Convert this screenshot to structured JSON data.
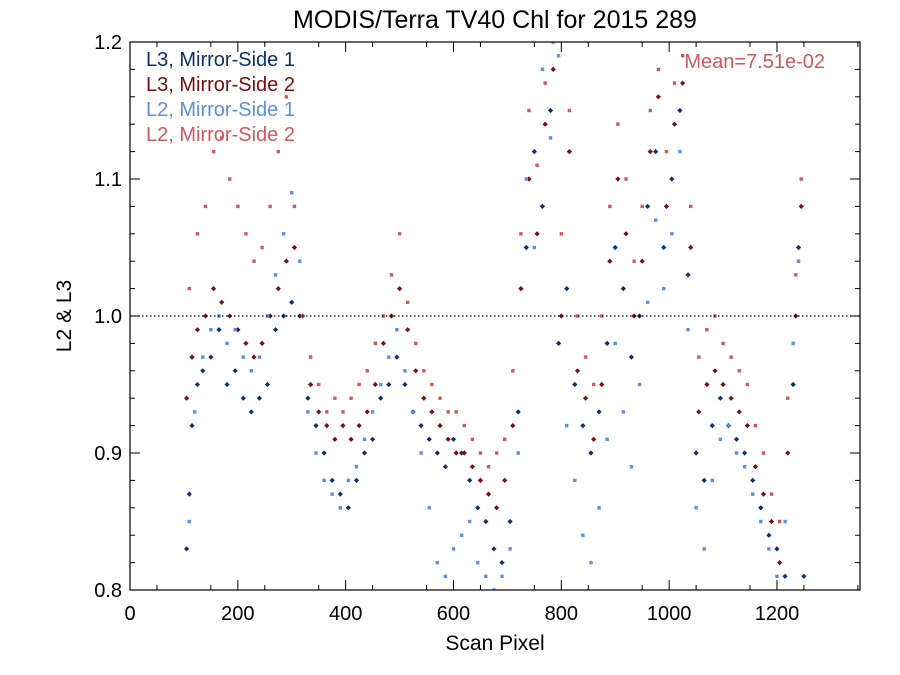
{
  "chart_data": {
    "type": "scatter",
    "title": "MODIS/Terra TV40 Chl for 2015 289",
    "xlabel": "Scan Pixel",
    "ylabel": "L2 & L3",
    "xlim": [
      0,
      1354
    ],
    "ylim": [
      0.8,
      1.2
    ],
    "x_ticks": [
      0,
      200,
      400,
      600,
      800,
      1000,
      1200
    ],
    "x_tick_labels": [
      "0",
      "200",
      "400",
      "600",
      "800",
      "1000",
      "1200"
    ],
    "y_ticks": [
      0.8,
      0.9,
      1.0,
      1.1,
      1.2
    ],
    "y_tick_labels": [
      "0.8",
      "0.9",
      "1.0",
      "1.1",
      "1.2"
    ],
    "reference_line": 1.0,
    "grid": false,
    "legend_position": "top-left",
    "annotation": {
      "text": "Mean=7.51e-02",
      "color": "#d0585c"
    },
    "series": [
      {
        "name": "L3, Mirror-Side 1",
        "color": "#0d2f6b",
        "marker": "diamond",
        "points": [
          [
            105,
            0.83
          ],
          [
            110,
            0.87
          ],
          [
            115,
            0.92
          ],
          [
            125,
            0.95
          ],
          [
            135,
            0.96
          ],
          [
            150,
            0.97
          ],
          [
            165,
            0.99
          ],
          [
            180,
            0.95
          ],
          [
            195,
            0.96
          ],
          [
            210,
            0.94
          ],
          [
            225,
            0.93
          ],
          [
            240,
            0.94
          ],
          [
            255,
            0.95
          ],
          [
            270,
            0.99
          ],
          [
            285,
            1.0
          ],
          [
            300,
            1.01
          ],
          [
            315,
            1.0
          ],
          [
            330,
            0.94
          ],
          [
            345,
            0.92
          ],
          [
            360,
            0.9
          ],
          [
            375,
            0.88
          ],
          [
            390,
            0.87
          ],
          [
            405,
            0.86
          ],
          [
            420,
            0.88
          ],
          [
            435,
            0.9
          ],
          [
            450,
            0.91
          ],
          [
            465,
            0.94
          ],
          [
            480,
            0.95
          ],
          [
            495,
            0.97
          ],
          [
            510,
            0.95
          ],
          [
            525,
            0.93
          ],
          [
            540,
            0.92
          ],
          [
            555,
            0.91
          ],
          [
            570,
            0.9
          ],
          [
            585,
            0.89
          ],
          [
            600,
            0.91
          ],
          [
            615,
            0.9
          ],
          [
            630,
            0.88
          ],
          [
            645,
            0.86
          ],
          [
            660,
            0.85
          ],
          [
            675,
            0.83
          ],
          [
            690,
            0.82
          ],
          [
            705,
            0.85
          ],
          [
            720,
            0.93
          ],
          [
            735,
            1.05
          ],
          [
            750,
            1.12
          ],
          [
            765,
            1.08
          ],
          [
            780,
            1.15
          ],
          [
            795,
            0.98
          ],
          [
            810,
            1.02
          ],
          [
            825,
            0.95
          ],
          [
            840,
            0.92
          ],
          [
            855,
            0.9
          ],
          [
            870,
            0.93
          ],
          [
            885,
            0.98
          ],
          [
            900,
            1.05
          ],
          [
            915,
            1.02
          ],
          [
            930,
            0.97
          ],
          [
            945,
            1.0
          ],
          [
            960,
            1.08
          ],
          [
            975,
            1.12
          ],
          [
            990,
            1.05
          ],
          [
            1005,
            1.1
          ],
          [
            1020,
            1.15
          ],
          [
            1035,
            1.03
          ],
          [
            1050,
            0.9
          ],
          [
            1065,
            0.88
          ],
          [
            1080,
            0.92
          ],
          [
            1095,
            0.94
          ],
          [
            1110,
            0.92
          ],
          [
            1125,
            0.91
          ],
          [
            1140,
            0.9
          ],
          [
            1155,
            0.88
          ],
          [
            1170,
            0.86
          ],
          [
            1185,
            0.84
          ],
          [
            1200,
            0.83
          ],
          [
            1215,
            0.81
          ],
          [
            1230,
            0.95
          ],
          [
            1240,
            1.05
          ],
          [
            1250,
            0.81
          ]
        ]
      },
      {
        "name": "L3, Mirror-Side 2",
        "color": "#7a0c14",
        "marker": "diamond",
        "points": [
          [
            105,
            0.94
          ],
          [
            115,
            0.97
          ],
          [
            125,
            0.99
          ],
          [
            140,
            1.0
          ],
          [
            155,
            1.02
          ],
          [
            170,
            1.01
          ],
          [
            185,
            1.0
          ],
          [
            200,
            0.99
          ],
          [
            215,
            0.98
          ],
          [
            230,
            0.97
          ],
          [
            245,
            0.98
          ],
          [
            260,
            1.0
          ],
          [
            275,
            1.02
          ],
          [
            290,
            1.04
          ],
          [
            305,
            1.05
          ],
          [
            320,
            1.0
          ],
          [
            335,
            0.95
          ],
          [
            350,
            0.93
          ],
          [
            365,
            0.92
          ],
          [
            380,
            0.91
          ],
          [
            395,
            0.92
          ],
          [
            410,
            0.91
          ],
          [
            425,
            0.92
          ],
          [
            440,
            0.93
          ],
          [
            455,
            0.95
          ],
          [
            470,
            0.98
          ],
          [
            485,
            1.0
          ],
          [
            500,
            1.02
          ],
          [
            515,
            0.99
          ],
          [
            530,
            0.96
          ],
          [
            545,
            0.94
          ],
          [
            560,
            0.93
          ],
          [
            575,
            0.92
          ],
          [
            590,
            0.91
          ],
          [
            605,
            0.9
          ],
          [
            620,
            0.9
          ],
          [
            635,
            0.89
          ],
          [
            650,
            0.88
          ],
          [
            665,
            0.87
          ],
          [
            680,
            0.86
          ],
          [
            695,
            0.88
          ],
          [
            710,
            0.92
          ],
          [
            725,
            1.02
          ],
          [
            740,
            1.1
          ],
          [
            755,
            1.06
          ],
          [
            770,
            1.14
          ],
          [
            785,
            1.18
          ],
          [
            800,
            1.0
          ],
          [
            815,
            1.12
          ],
          [
            830,
            0.96
          ],
          [
            845,
            0.94
          ],
          [
            860,
            0.91
          ],
          [
            875,
            0.95
          ],
          [
            890,
            1.04
          ],
          [
            905,
            1.1
          ],
          [
            920,
            1.06
          ],
          [
            935,
            1.0
          ],
          [
            950,
            1.04
          ],
          [
            965,
            1.12
          ],
          [
            980,
            1.16
          ],
          [
            995,
            1.08
          ],
          [
            1010,
            1.14
          ],
          [
            1025,
            1.17
          ],
          [
            1040,
            1.05
          ],
          [
            1055,
            0.93
          ],
          [
            1070,
            0.95
          ],
          [
            1085,
            0.96
          ],
          [
            1100,
            0.95
          ],
          [
            1115,
            0.94
          ],
          [
            1130,
            0.93
          ],
          [
            1145,
            0.92
          ],
          [
            1160,
            0.89
          ],
          [
            1175,
            0.87
          ],
          [
            1190,
            0.85
          ],
          [
            1205,
            0.82
          ],
          [
            1220,
            0.9
          ],
          [
            1235,
            1.0
          ],
          [
            1245,
            1.08
          ]
        ]
      },
      {
        "name": "L2, Mirror-Side 1",
        "color": "#5b8fe0",
        "marker": "square",
        "points": [
          [
            110,
            0.85
          ],
          [
            120,
            0.93
          ],
          [
            135,
            0.97
          ],
          [
            150,
            0.99
          ],
          [
            165,
            1.0
          ],
          [
            180,
            0.98
          ],
          [
            195,
            0.99
          ],
          [
            210,
            0.97
          ],
          [
            225,
            0.96
          ],
          [
            240,
            0.97
          ],
          [
            255,
            1.0
          ],
          [
            270,
            1.03
          ],
          [
            285,
            1.06
          ],
          [
            300,
            1.09
          ],
          [
            315,
            1.04
          ],
          [
            330,
            0.93
          ],
          [
            345,
            0.9
          ],
          [
            360,
            0.88
          ],
          [
            375,
            0.87
          ],
          [
            390,
            0.86
          ],
          [
            405,
            0.88
          ],
          [
            420,
            0.89
          ],
          [
            435,
            0.91
          ],
          [
            450,
            0.93
          ],
          [
            465,
            0.95
          ],
          [
            480,
            0.97
          ],
          [
            495,
            0.99
          ],
          [
            510,
            0.96
          ],
          [
            525,
            0.93
          ],
          [
            540,
            0.9
          ],
          [
            555,
            0.86
          ],
          [
            570,
            0.82
          ],
          [
            585,
            0.81
          ],
          [
            600,
            0.83
          ],
          [
            615,
            0.84
          ],
          [
            630,
            0.85
          ],
          [
            645,
            0.82
          ],
          [
            660,
            0.81
          ],
          [
            675,
            0.8
          ],
          [
            690,
            0.81
          ],
          [
            705,
            0.83
          ],
          [
            720,
            0.9
          ],
          [
            735,
            1.1
          ],
          [
            750,
            1.05
          ],
          [
            765,
            1.18
          ],
          [
            780,
            1.13
          ],
          [
            795,
            1.19
          ],
          [
            810,
            0.92
          ],
          [
            825,
            0.88
          ],
          [
            840,
            0.84
          ],
          [
            855,
            0.82
          ],
          [
            870,
            0.86
          ],
          [
            885,
            0.91
          ],
          [
            900,
            0.98
          ],
          [
            915,
            0.93
          ],
          [
            930,
            0.89
          ],
          [
            945,
            0.95
          ],
          [
            960,
            1.01
          ],
          [
            975,
            1.07
          ],
          [
            990,
            1.02
          ],
          [
            1005,
            1.06
          ],
          [
            1020,
            1.12
          ],
          [
            1035,
            0.99
          ],
          [
            1050,
            0.86
          ],
          [
            1065,
            0.83
          ],
          [
            1080,
            0.88
          ],
          [
            1095,
            0.91
          ],
          [
            1110,
            0.92
          ],
          [
            1125,
            0.9
          ],
          [
            1140,
            0.89
          ],
          [
            1155,
            0.87
          ],
          [
            1170,
            0.85
          ],
          [
            1185,
            0.83
          ],
          [
            1200,
            0.81
          ],
          [
            1215,
            0.85
          ],
          [
            1230,
            0.98
          ],
          [
            1240,
            1.04
          ]
        ]
      },
      {
        "name": "L2, Mirror-Side 2",
        "color": "#d0585c",
        "marker": "square",
        "points": [
          [
            110,
            1.02
          ],
          [
            125,
            1.06
          ],
          [
            140,
            1.08
          ],
          [
            155,
            1.12
          ],
          [
            170,
            1.13
          ],
          [
            185,
            1.1
          ],
          [
            200,
            1.08
          ],
          [
            215,
            1.06
          ],
          [
            230,
            1.04
          ],
          [
            245,
            1.05
          ],
          [
            260,
            1.08
          ],
          [
            275,
            1.12
          ],
          [
            290,
            1.16
          ],
          [
            305,
            1.08
          ],
          [
            320,
            1.0
          ],
          [
            335,
            0.97
          ],
          [
            350,
            0.95
          ],
          [
            365,
            0.93
          ],
          [
            380,
            0.94
          ],
          [
            395,
            0.93
          ],
          [
            410,
            0.94
          ],
          [
            425,
            0.95
          ],
          [
            440,
            0.96
          ],
          [
            455,
            0.98
          ],
          [
            470,
            1.0
          ],
          [
            485,
            1.03
          ],
          [
            500,
            1.06
          ],
          [
            515,
            1.01
          ],
          [
            530,
            0.98
          ],
          [
            545,
            0.96
          ],
          [
            560,
            0.95
          ],
          [
            575,
            0.94
          ],
          [
            590,
            0.93
          ],
          [
            605,
            0.93
          ],
          [
            620,
            0.92
          ],
          [
            635,
            0.91
          ],
          [
            650,
            0.9
          ],
          [
            665,
            0.89
          ],
          [
            680,
            0.9
          ],
          [
            695,
            0.91
          ],
          [
            710,
            0.96
          ],
          [
            725,
            1.06
          ],
          [
            740,
            1.15
          ],
          [
            755,
            1.11
          ],
          [
            770,
            1.17
          ],
          [
            785,
            1.2
          ],
          [
            800,
            1.06
          ],
          [
            815,
            1.15
          ],
          [
            830,
            1.0
          ],
          [
            845,
            0.97
          ],
          [
            860,
            0.95
          ],
          [
            875,
            1.0
          ],
          [
            890,
            1.08
          ],
          [
            905,
            1.14
          ],
          [
            920,
            1.1
          ],
          [
            935,
            1.04
          ],
          [
            950,
            1.08
          ],
          [
            965,
            1.15
          ],
          [
            980,
            1.18
          ],
          [
            995,
            1.12
          ],
          [
            1010,
            1.17
          ],
          [
            1025,
            1.19
          ],
          [
            1040,
            1.08
          ],
          [
            1055,
            0.97
          ],
          [
            1070,
            0.99
          ],
          [
            1085,
            1.0
          ],
          [
            1100,
            0.98
          ],
          [
            1115,
            0.97
          ],
          [
            1130,
            0.96
          ],
          [
            1145,
            0.95
          ],
          [
            1160,
            0.92
          ],
          [
            1175,
            0.9
          ],
          [
            1190,
            0.87
          ],
          [
            1205,
            0.85
          ],
          [
            1220,
            0.94
          ],
          [
            1235,
            1.03
          ],
          [
            1245,
            1.1
          ]
        ]
      }
    ]
  }
}
